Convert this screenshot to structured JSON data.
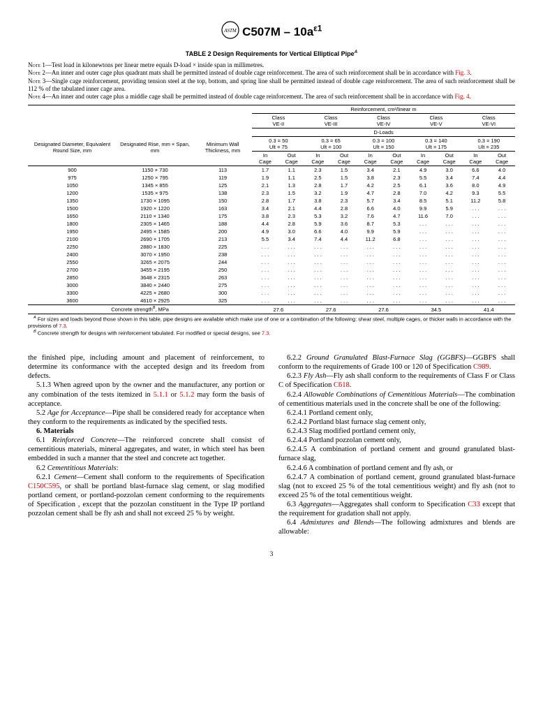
{
  "header": {
    "designation": "C507M – 10a",
    "epsilon": "ε1"
  },
  "table": {
    "title": "TABLE 2  Design Requirements for Vertical Elliptical Pipe",
    "title_sup": "A",
    "notes": [
      {
        "n": "1",
        "text": "Test load in kilonewtons per linear metre equals D-load × inside span in millimetres."
      },
      {
        "n": "2",
        "text": "An inner and outer cage plus quadrant mats shall be permitted instead of double cage reinforcement. The area of such reinforcement shall be in accordance with ",
        "link": "Fig. 3",
        "after": "."
      },
      {
        "n": "3",
        "text": "Single cage reinforcement, providing tension steel at the top, bottom, and spring line shall be permitted instead of double cage reinforcement. The area of such reinforcement shall be 112 % of the tabulated inner cage area."
      },
      {
        "n": "4",
        "text": "An inner and outer cage plus a middle cage shall be permitted instead of double cage reinforcement. The area of such reinforcement shall be in accordance with ",
        "link": "Fig. 4",
        "after": "."
      }
    ],
    "header_rows": {
      "reinforcement_label": "Reinforcement, cm²/linear m",
      "col1": "Designated Diameter, Equivalent Round Size, mm",
      "col2": "Designated Rise, mm × Span, mm",
      "col3": "Minimum Wall Thickness, mm",
      "classes": [
        "Class VE-II",
        "Class VE-III",
        "Class VE-IV",
        "Class VE-V",
        "Class VE-VI"
      ],
      "dloads_label": "D-Loads",
      "dloads": [
        "0.3 = 50\nUlt = 75",
        "0.3 = 65\nUlt = 100",
        "0.3 = 100\nUlt = 150",
        "0.3 = 140\nUlt = 175",
        "0.3 = 190\nUlt = 235"
      ],
      "cage": [
        "In Cage",
        "Out Cage"
      ]
    },
    "rows": [
      [
        "900",
        "1150 × 730",
        "113",
        "1.7",
        "1.1",
        "2.3",
        "1.5",
        "3.4",
        "2.1",
        "4.9",
        "3.0",
        "6.6",
        "4.0"
      ],
      [
        "975",
        "1250 × 795",
        "119",
        "1.9",
        "1.1",
        "2.5",
        "1.5",
        "3.8",
        "2.3",
        "5.5",
        "3.4",
        "7.4",
        "4.4"
      ],
      [
        "1050",
        "1345 × 855",
        "125",
        "2.1",
        "1.3",
        "2.8",
        "1.7",
        "4.2",
        "2.5",
        "6.1",
        "3.6",
        "8.0",
        "4.9"
      ],
      [
        "1200",
        "1535 × 975",
        "138",
        "2.3",
        "1.5",
        "3.2",
        "1.9",
        "4.7",
        "2.8",
        "7.0",
        "4.2",
        "9.3",
        "5.5"
      ],
      [
        "1350",
        "1730 × 1095",
        "150",
        "2.8",
        "1.7",
        "3.8",
        "2.3",
        "5.7",
        "3.4",
        "8.5",
        "5.1",
        "11.2",
        "5.8"
      ],
      [
        "1500",
        "1920 × 1220",
        "163",
        "3.4",
        "2.1",
        "4.4",
        "2.8",
        "6.6",
        "4.0",
        "9.9",
        "5.9",
        ". . .",
        ". . ."
      ],
      [
        "1650",
        "2110 × 1340",
        "175",
        "3.8",
        "2.3",
        "5.3",
        "3.2",
        "7.6",
        "4.7",
        "11.6",
        "7.0",
        ". . .",
        ". . ."
      ],
      [
        "1800",
        "2305 × 1465",
        "188",
        "4.4",
        "2.8",
        "5.9",
        "3.6",
        "8.7",
        "5.3",
        ". . .",
        ". . .",
        ". . .",
        ". . ."
      ],
      [
        "1950",
        "2495 × 1585",
        "200",
        "4.9",
        "3.0",
        "6.6",
        "4.0",
        "9.9",
        "5.9",
        ". . .",
        ". . .",
        ". . .",
        ". . ."
      ],
      [
        "2100",
        "2690 × 1705",
        "213",
        "5.5",
        "3.4",
        "7.4",
        "4.4",
        "11.2",
        "6.8",
        ". . .",
        ". . .",
        ". . .",
        ". . ."
      ],
      [
        "2250",
        "2880 × 1830",
        "225",
        ". . .",
        ". . .",
        ". . .",
        ". . .",
        ". . .",
        ". . .",
        ". . .",
        ". . .",
        ". . .",
        ". . ."
      ],
      [
        "2400",
        "3070 × 1950",
        "238",
        ". . .",
        ". . .",
        ". . .",
        ". . .",
        ". . .",
        ". . .",
        ". . .",
        ". . .",
        ". . .",
        ". . ."
      ],
      [
        "2550",
        "3265 × 2075",
        "244",
        ". . .",
        ". . .",
        ". . .",
        ". . .",
        ". . .",
        ". . .",
        ". . .",
        ". . .",
        ". . .",
        ". . ."
      ],
      [
        "2700",
        "3455 × 2195",
        "250",
        ". . .",
        ". . .",
        ". . .",
        ". . .",
        ". . .",
        ". . .",
        ". . .",
        ". . .",
        ". . .",
        ". . ."
      ],
      [
        "2850",
        "3648 × 2315",
        "263",
        ". . .",
        ". . .",
        ". . .",
        ". . .",
        ". . .",
        ". . .",
        ". . .",
        ". . .",
        ". . .",
        ". . ."
      ],
      [
        "3000",
        "3840 × 2440",
        "275",
        ". . .",
        ". . .",
        ". . .",
        ". . .",
        ". . .",
        ". . .",
        ". . .",
        ". . .",
        ". . .",
        ". . ."
      ],
      [
        "3300",
        "4225 × 2680",
        "300",
        ". . .",
        ". . .",
        ". . .",
        ". . .",
        ". . .",
        ". . .",
        ". . .",
        ". . .",
        ". . .",
        ". . ."
      ],
      [
        "3600",
        "4610 × 2925",
        "325",
        ". . .",
        ". . .",
        ". . .",
        ". . .",
        ". . .",
        ". . .",
        ". . .",
        ". . .",
        ". . .",
        ". . ."
      ]
    ],
    "strength_row": {
      "label": "Concrete strength",
      "sup": "B",
      "unit": ", MPa",
      "values": [
        "27.6",
        "27.6",
        "27.6",
        "34.5",
        "41.4"
      ]
    },
    "footnotes": [
      {
        "sup": "A",
        "text": "For sizes and loads beyond those shown in this table, pipe designs are available which make use of one or a combination of the following: shear steel, multiple cages, or thicker walls in accordance with the provisions of ",
        "link": "7.3",
        "after": "."
      },
      {
        "sup": "B",
        "text": "Concrete strength for designs with reinforcement tabulated. For modified or special designs, see ",
        "link": "7.3",
        "after": "."
      }
    ]
  },
  "body": {
    "left": [
      {
        "type": "p",
        "text": "the finished pipe, including amount and placement of reinforcement, to determine its conformance with the accepted design and its freedom from defects.",
        "indent": false
      },
      {
        "type": "p",
        "text": "5.1.3 When agreed upon by the owner and the manufacturer, any portion or any combination of the tests itemized in ",
        "link": "5.1.1",
        "mid": " or ",
        "link2": "5.1.2",
        "after": " may form the basis of acceptance."
      },
      {
        "type": "p",
        "em": "Age for Acceptance",
        "lead": "5.2 ",
        "text": "—Pipe shall be considered ready for acceptance when they conform to the requirements as indicated by the specified tests."
      },
      {
        "type": "h",
        "text": "6. Materials"
      },
      {
        "type": "p",
        "em": "Reinforced Concrete",
        "lead": "6.1 ",
        "text": "—The reinforced concrete shall consist of cementitious materials, mineral aggregates, and water, in which steel has been embedded in such a manner that the steel and concrete act together."
      },
      {
        "type": "p",
        "em": "Cementitious Materials",
        "lead": "6.2 ",
        "text": ":"
      },
      {
        "type": "p",
        "em": "Cement",
        "lead": "6.2.1 ",
        "text": "—Cement shall conform to the requirements of Specification ",
        "link": "C150",
        "after": ", or shall be portland blast-furnace slag cement, or slag modified portland cement, or portland-pozzolan cement conforming to the requirements of Specification ",
        "link2": "C595",
        "after2": ", except that the pozzolan constituent in the Type IP portland pozzolan cement shall be fly ash and shall not exceed 25 % by weight."
      }
    ],
    "right": [
      {
        "type": "p",
        "em": "Ground Granulated Blast-Furnace Slag (GGBFS)",
        "lead": "6.2.2 ",
        "text": "—GGBFS shall conform to the requirements of Grade 100 or 120 of Specification ",
        "link": "C989",
        "after": "."
      },
      {
        "type": "p",
        "em": "Fly Ash",
        "lead": "6.2.3 ",
        "text": "—Fly ash shall conform to the requirements of Class F or Class C of Specification ",
        "link": "C618",
        "after": "."
      },
      {
        "type": "p",
        "em": "Allowable Combinations of Cementitious Materials",
        "lead": "6.2.4 ",
        "text": "—The combination of cementitious materials used in the concrete shall be one of the following:"
      },
      {
        "type": "p",
        "lead": "6.2.4.1 ",
        "text": "Portland cement only,"
      },
      {
        "type": "p",
        "lead": "6.2.4.2 ",
        "text": "Portland blast furnace slag cement only,"
      },
      {
        "type": "p",
        "lead": "6.2.4.3 ",
        "text": "Slag modified portland cement only,"
      },
      {
        "type": "p",
        "lead": "6.2.4.4 ",
        "text": "Portland pozzolan cement only,"
      },
      {
        "type": "p",
        "lead": "6.2.4.5 ",
        "text": "A combination of portland cement and ground granulated blast-furnace slag,"
      },
      {
        "type": "p",
        "lead": "6.2.4.6 ",
        "text": "A combination of portland cement and fly ash, or"
      },
      {
        "type": "p",
        "lead": "6.2.4.7 ",
        "text": "A combination of portland cement, ground granulated blast-furnace slag (not to exceed 25 % of the total cementitious weight) and fly ash (not to exceed 25 % of the total cementitious weight."
      },
      {
        "type": "p",
        "em": "Aggregates",
        "lead": "6.3 ",
        "text": "—Aggregates shall conform to Specification ",
        "link": "C33",
        "after": " except that the requirement for gradation shall not apply."
      },
      {
        "type": "p",
        "em": "Admixtures and Blends",
        "lead": "6.4 ",
        "text": "—The following admixtures and blends are allowable:"
      }
    ]
  },
  "pageno": "3"
}
